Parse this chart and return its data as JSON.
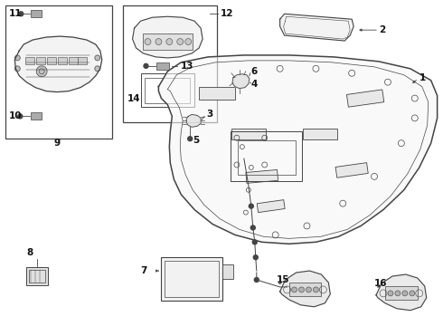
{
  "bg_color": "#ffffff",
  "line_color": "#444444",
  "label_color": "#111111",
  "fig_width": 4.9,
  "fig_height": 3.6,
  "dpi": 100
}
